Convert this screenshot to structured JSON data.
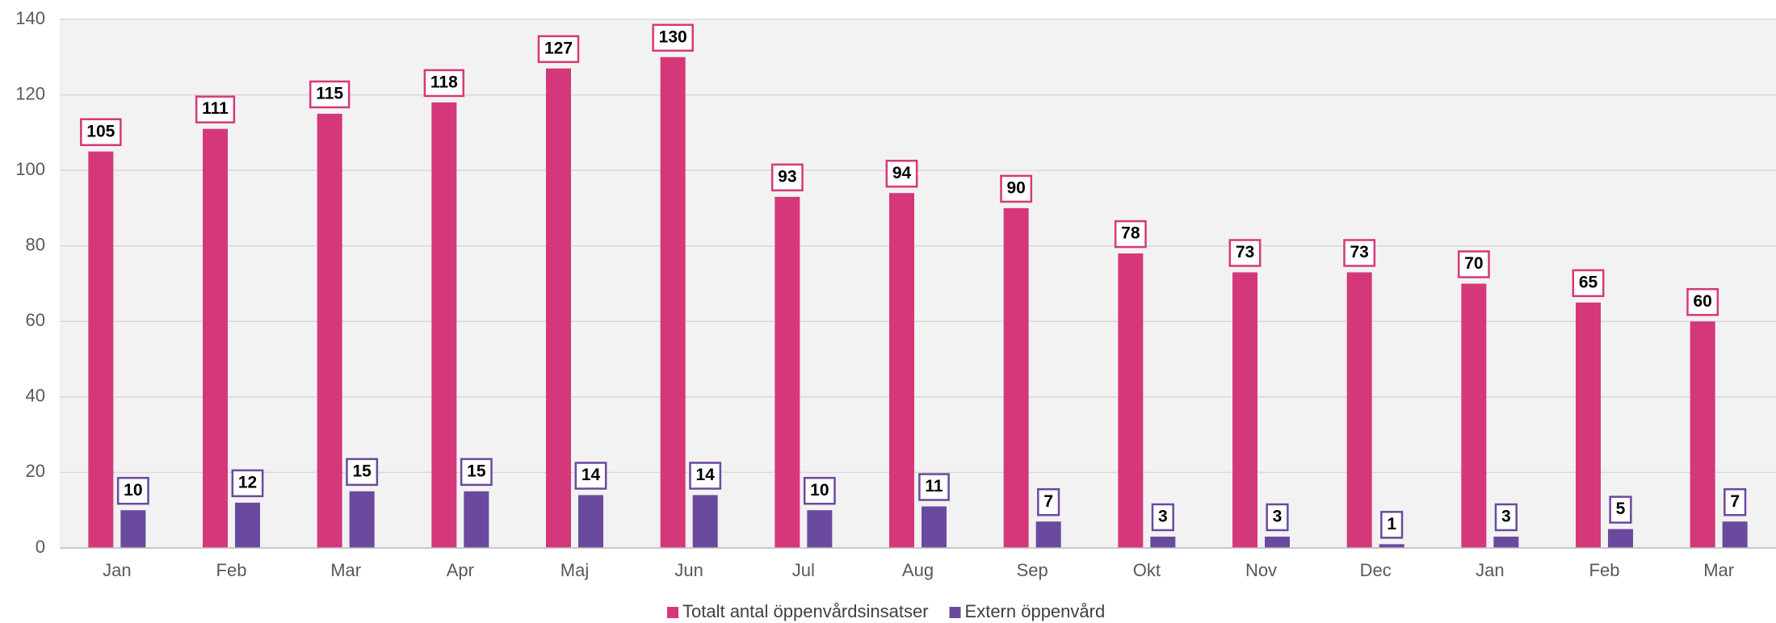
{
  "chart_data": {
    "type": "bar",
    "categories": [
      "Jan",
      "Feb",
      "Mar",
      "Apr",
      "Maj",
      "Jun",
      "Jul",
      "Aug",
      "Sep",
      "Okt",
      "Nov",
      "Dec",
      "Jan",
      "Feb",
      "Mar"
    ],
    "series": [
      {
        "name": "Totalt antal öppenvårdsinsatser",
        "color": "#d5387a",
        "values": [
          105,
          111,
          115,
          118,
          127,
          130,
          93,
          94,
          90,
          78,
          73,
          73,
          70,
          65,
          60
        ]
      },
      {
        "name": "Extern öppenvård",
        "color": "#6a4a9e",
        "values": [
          10,
          12,
          15,
          15,
          14,
          14,
          10,
          11,
          7,
          3,
          3,
          1,
          3,
          5,
          7
        ]
      }
    ],
    "ylim": [
      0,
      140
    ],
    "yticks": [
      0,
      20,
      40,
      60,
      80,
      100,
      120,
      140
    ],
    "grid": true,
    "legend": "bottom"
  }
}
